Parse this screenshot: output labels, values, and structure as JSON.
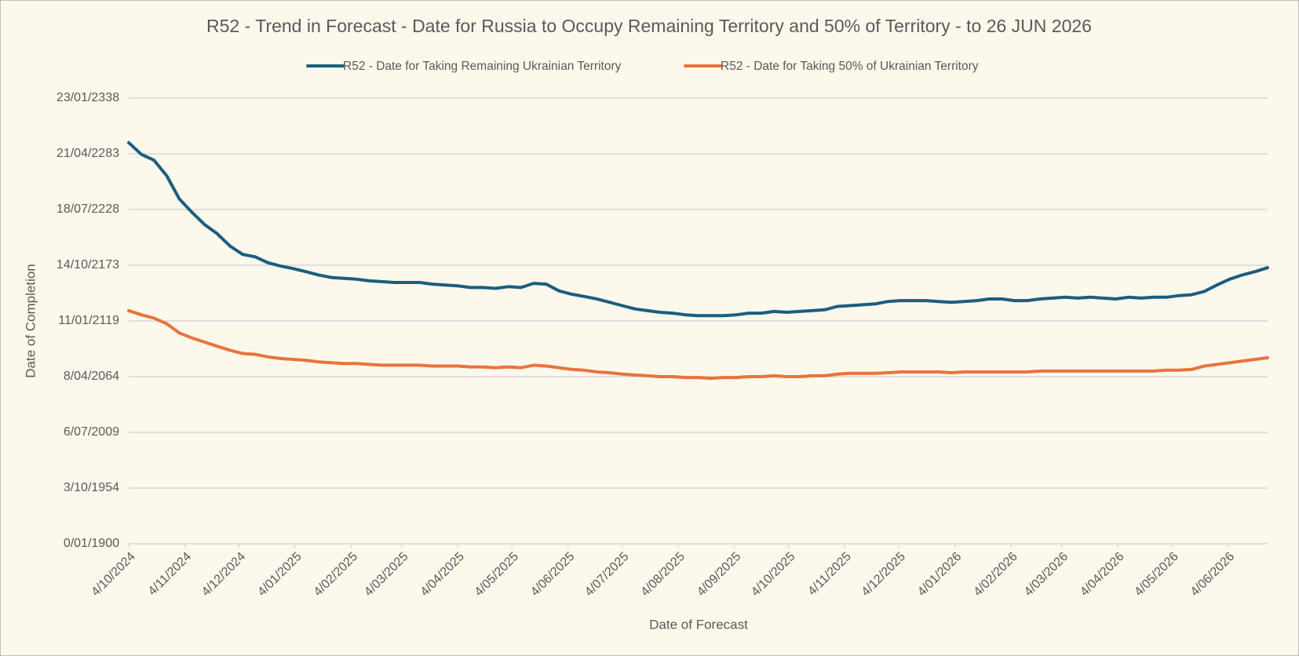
{
  "chart_data": {
    "type": "line",
    "title": "R52 - Trend in Forecast - Date for Russia to Occupy Remaining Territory and 50% of Territory - to 26 JUN 2026",
    "x_label": "Date of Forecast",
    "y_label": "Date of Completion",
    "legend": "top",
    "grid": true,
    "x": [
      "2024-10-04",
      "2024-10-11",
      "2024-10-18",
      "2024-10-25",
      "2024-11-01",
      "2024-11-08",
      "2024-11-15",
      "2024-11-22",
      "2024-11-29",
      "2024-12-06",
      "2024-12-13",
      "2024-12-20",
      "2024-12-27",
      "2025-01-03",
      "2025-01-10",
      "2025-01-17",
      "2025-01-24",
      "2025-01-31",
      "2025-02-07",
      "2025-02-14",
      "2025-02-21",
      "2025-02-28",
      "2025-03-07",
      "2025-03-14",
      "2025-03-21",
      "2025-03-28",
      "2025-04-04",
      "2025-04-11",
      "2025-04-18",
      "2025-04-25",
      "2025-05-02",
      "2025-05-09",
      "2025-05-16",
      "2025-05-23",
      "2025-05-30",
      "2025-06-06",
      "2025-06-13",
      "2025-06-20",
      "2025-06-27",
      "2025-07-04",
      "2025-07-11",
      "2025-07-18",
      "2025-07-25",
      "2025-08-01",
      "2025-08-08",
      "2025-08-15",
      "2025-08-22",
      "2025-08-29",
      "2025-09-05",
      "2025-09-12",
      "2025-09-19",
      "2025-09-26",
      "2025-10-03",
      "2025-10-10",
      "2025-10-17",
      "2025-10-24",
      "2025-10-31",
      "2025-11-07",
      "2025-11-14",
      "2025-11-21",
      "2025-11-28",
      "2025-12-05",
      "2025-12-12",
      "2025-12-19",
      "2025-12-26",
      "2026-01-02",
      "2026-01-09",
      "2026-01-16",
      "2026-01-23",
      "2026-01-30",
      "2026-02-06",
      "2026-02-13",
      "2026-02-20",
      "2026-02-27",
      "2026-03-06",
      "2026-03-13",
      "2026-03-20",
      "2026-03-27",
      "2026-04-03",
      "2026-04-10",
      "2026-04-17",
      "2026-04-24",
      "2026-05-01",
      "2026-05-08",
      "2026-05-15",
      "2026-05-22",
      "2026-05-29",
      "2026-06-05",
      "2026-06-12",
      "2026-06-19",
      "2026-06-26"
    ],
    "xlim": [
      "2024-10-04",
      "2026-06-26"
    ],
    "xticks": [
      {
        "value": "2024-10-04",
        "label": "4/10/2024"
      },
      {
        "value": "2024-11-04",
        "label": "4/11/2024"
      },
      {
        "value": "2024-12-04",
        "label": "4/12/2024"
      },
      {
        "value": "2025-01-04",
        "label": "4/01/2025"
      },
      {
        "value": "2025-02-04",
        "label": "4/02/2025"
      },
      {
        "value": "2025-03-04",
        "label": "4/03/2025"
      },
      {
        "value": "2025-04-04",
        "label": "4/04/2025"
      },
      {
        "value": "2025-05-04",
        "label": "4/05/2025"
      },
      {
        "value": "2025-06-04",
        "label": "4/06/2025"
      },
      {
        "value": "2025-07-04",
        "label": "4/07/2025"
      },
      {
        "value": "2025-08-04",
        "label": "4/08/2025"
      },
      {
        "value": "2025-09-04",
        "label": "4/09/2025"
      },
      {
        "value": "2025-10-04",
        "label": "4/10/2025"
      },
      {
        "value": "2025-11-04",
        "label": "4/11/2025"
      },
      {
        "value": "2025-12-04",
        "label": "4/12/2025"
      },
      {
        "value": "2026-01-04",
        "label": "4/01/2026"
      },
      {
        "value": "2026-02-04",
        "label": "4/02/2026"
      },
      {
        "value": "2026-03-04",
        "label": "4/03/2026"
      },
      {
        "value": "2026-04-04",
        "label": "4/04/2026"
      },
      {
        "value": "2026-05-04",
        "label": "4/05/2026"
      },
      {
        "value": "2026-06-04",
        "label": "4/06/2026"
      }
    ],
    "ylim": [
      0,
      160000
    ],
    "yticks": [
      {
        "value": 0,
        "label": "0/01/1900"
      },
      {
        "value": 20000,
        "label": "3/10/1954"
      },
      {
        "value": 40000,
        "label": "6/07/2009"
      },
      {
        "value": 60000,
        "label": "8/04/2064"
      },
      {
        "value": 80000,
        "label": "11/01/2119"
      },
      {
        "value": 100000,
        "label": "14/10/2173"
      },
      {
        "value": 120000,
        "label": "18/07/2228"
      },
      {
        "value": 140000,
        "label": "21/04/2283"
      },
      {
        "value": 160000,
        "label": "23/01/2338"
      }
    ],
    "series": [
      {
        "name": "R52 - Date for Taking Remaining Ukrainian Territory",
        "color": "#1b5e80",
        "values": [
          144000,
          139800,
          137700,
          132100,
          123800,
          119000,
          114600,
          111300,
          106900,
          103900,
          103000,
          100900,
          99700,
          98800,
          97700,
          96500,
          95600,
          95300,
          95000,
          94400,
          94100,
          93800,
          93800,
          93800,
          93200,
          92900,
          92600,
          92000,
          92000,
          91700,
          92300,
          92000,
          93500,
          93200,
          90800,
          89600,
          88800,
          87900,
          86700,
          85500,
          84300,
          83700,
          83100,
          82800,
          82200,
          81900,
          81900,
          81900,
          82200,
          82800,
          82800,
          83400,
          83100,
          83400,
          83700,
          84000,
          85200,
          85500,
          85800,
          86100,
          87000,
          87300,
          87300,
          87300,
          87000,
          86700,
          87000,
          87300,
          87900,
          87900,
          87300,
          87300,
          87900,
          88200,
          88500,
          88200,
          88500,
          88200,
          87900,
          88500,
          88200,
          88500,
          88500,
          89100,
          89400,
          90600,
          92900,
          95000,
          96500,
          97700,
          99100
        ]
      },
      {
        "name": "R52 - Date for Taking  50% of Ukrainian Territory",
        "color": "#e8743b",
        "values": [
          83700,
          82200,
          81000,
          79000,
          75700,
          73900,
          72400,
          70900,
          69500,
          68300,
          68000,
          67100,
          66500,
          66200,
          65900,
          65300,
          65000,
          64700,
          64700,
          64400,
          64100,
          64100,
          64100,
          64100,
          63800,
          63800,
          63800,
          63500,
          63500,
          63200,
          63500,
          63200,
          64100,
          63800,
          63200,
          62600,
          62300,
          61700,
          61400,
          60900,
          60600,
          60300,
          60000,
          60000,
          59700,
          59700,
          59400,
          59700,
          59700,
          60000,
          60000,
          60300,
          60000,
          60000,
          60300,
          60300,
          60900,
          61200,
          61200,
          61200,
          61400,
          61700,
          61700,
          61700,
          61700,
          61400,
          61700,
          61700,
          61700,
          61700,
          61700,
          61700,
          62000,
          62000,
          62000,
          62000,
          62000,
          62000,
          62000,
          62000,
          62000,
          62000,
          62300,
          62300,
          62600,
          63800,
          64400,
          65000,
          65600,
          66200,
          66800
        ]
      }
    ]
  }
}
